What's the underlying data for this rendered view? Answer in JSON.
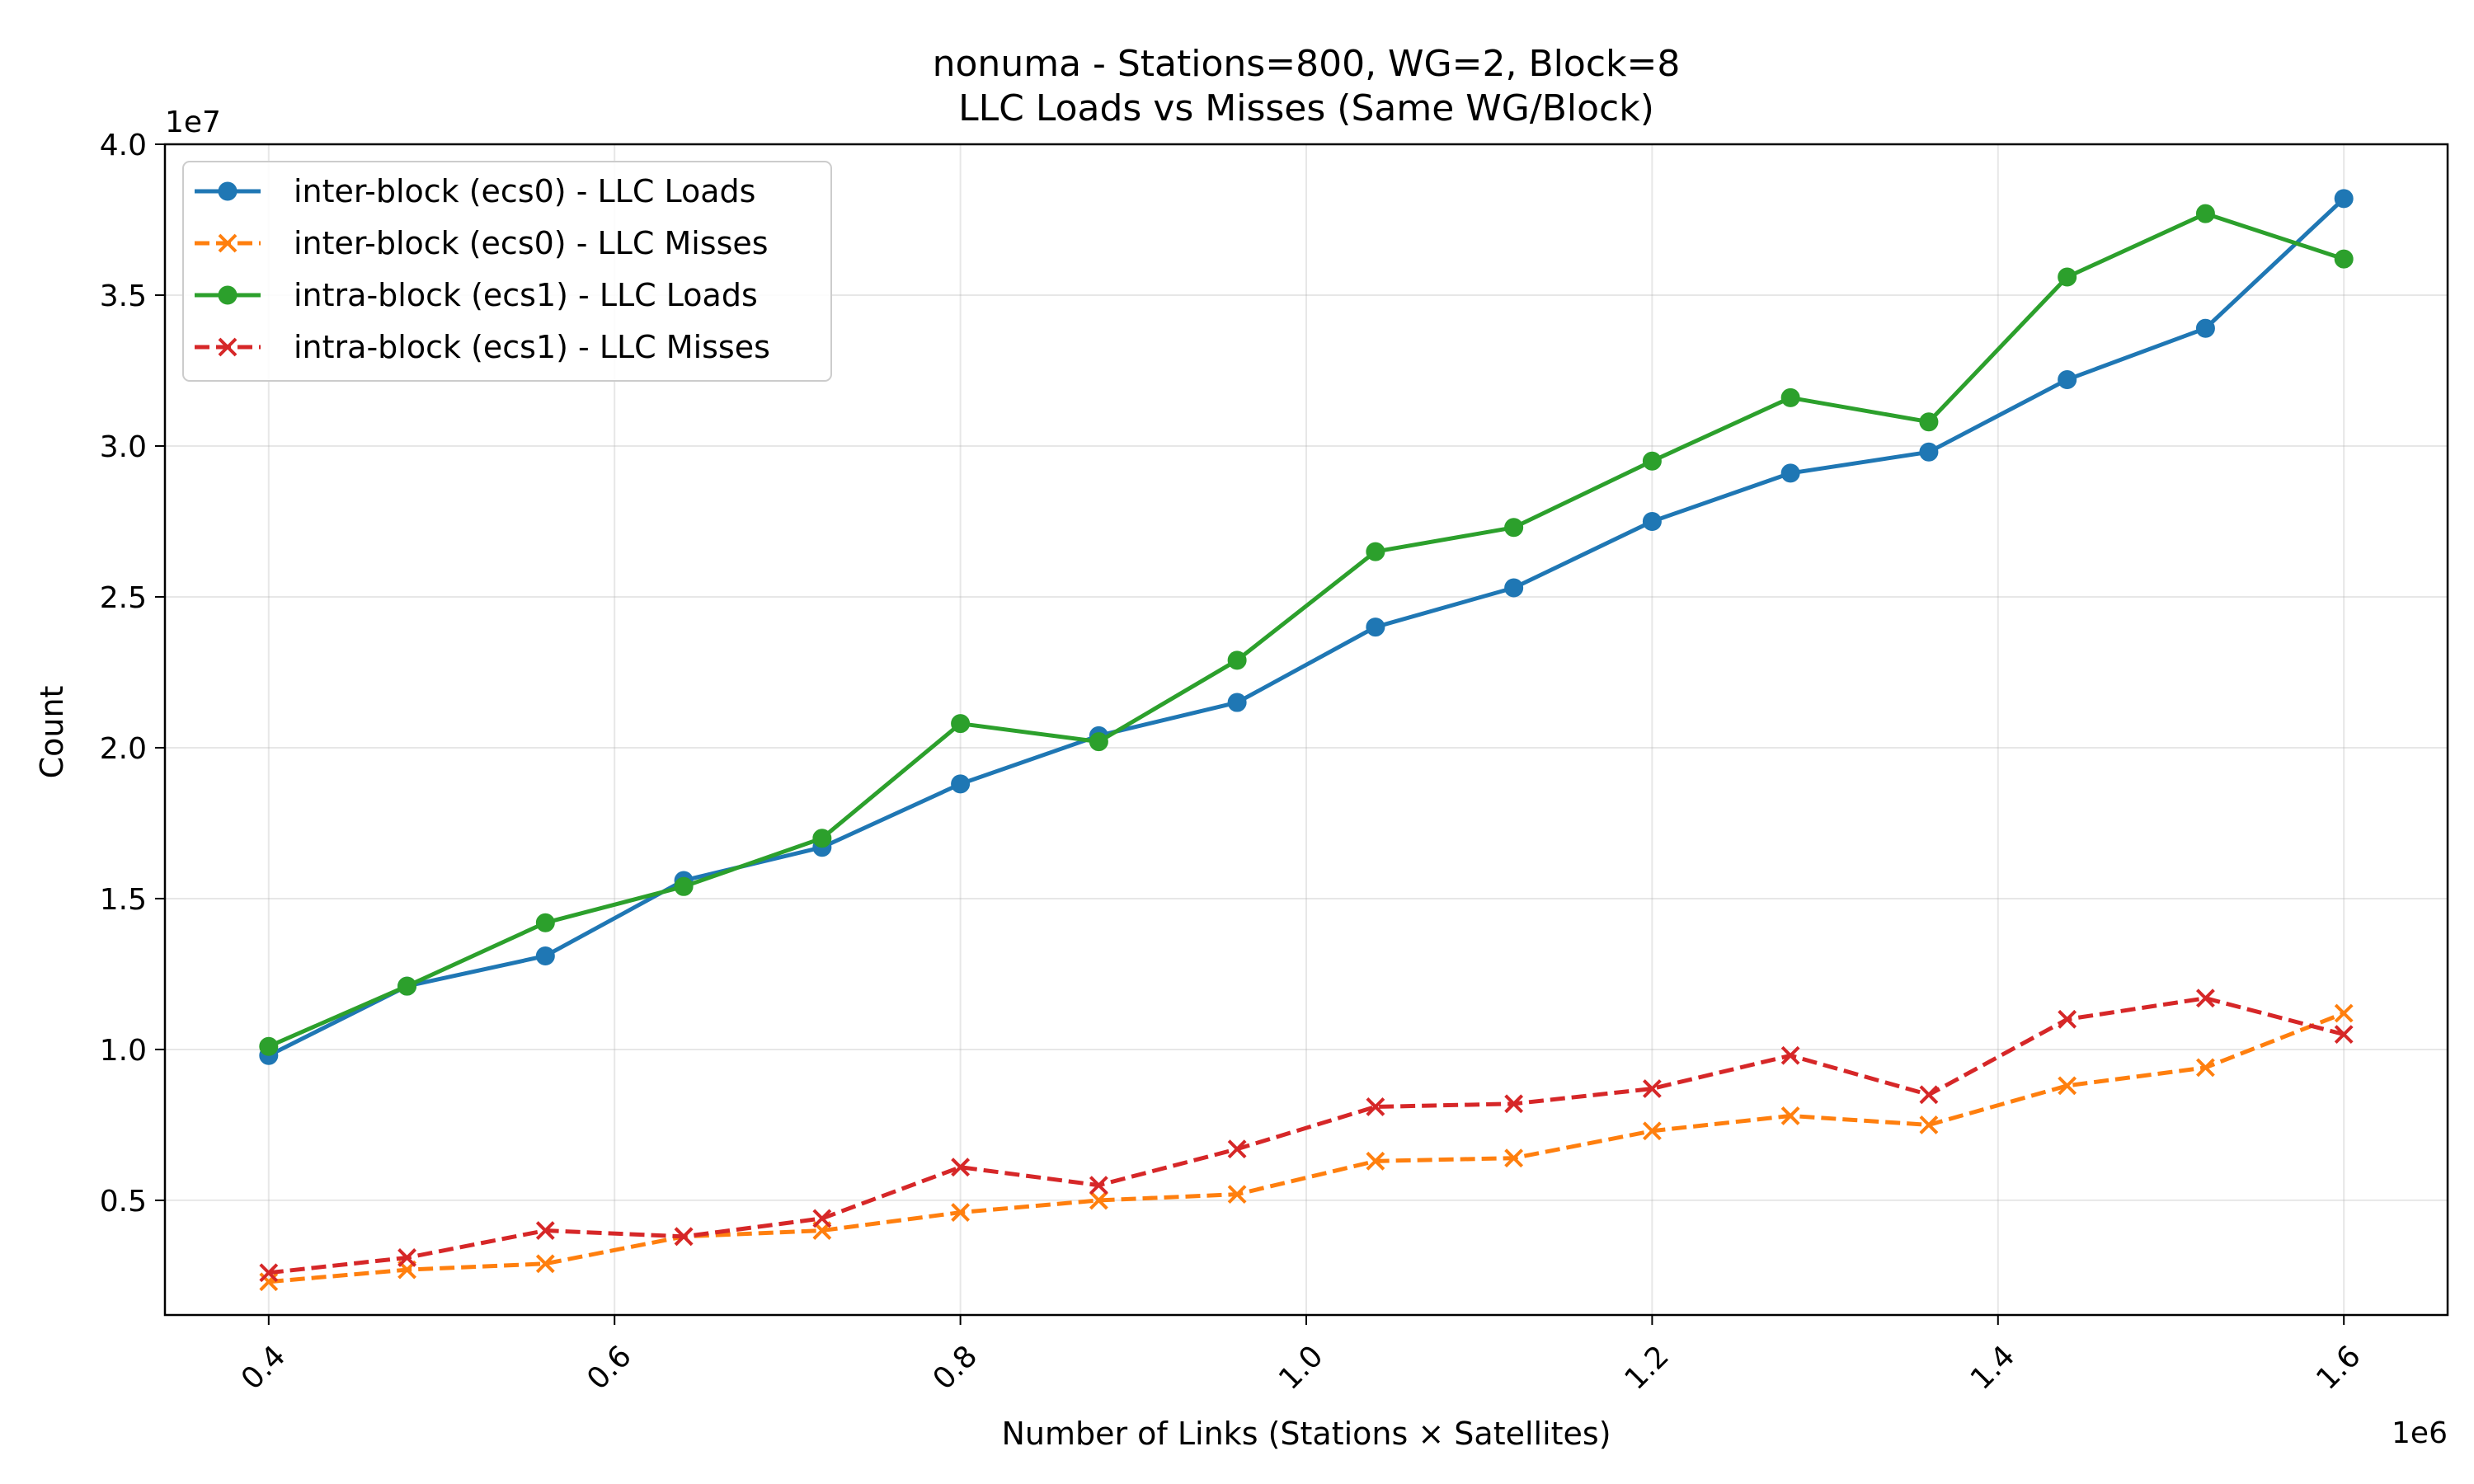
{
  "chart_data": {
    "type": "line",
    "title": "nonuma - Stations=800, WG=2, Block=8",
    "subtitle": "LLC Loads vs Misses (Same WG/Block)",
    "xlabel": "Number of Links (Stations × Satellites)",
    "ylabel": "Count",
    "x_offset_text": "1e6",
    "y_offset_text": "1e7",
    "xlim": [
      0.34,
      1.66
    ],
    "ylim": [
      0.12,
      4.0
    ],
    "x_scale_note": "1e6",
    "y_scale_note": "1e7",
    "xticks": [
      0.4,
      0.6,
      0.8,
      1.0,
      1.2,
      1.4,
      1.6
    ],
    "xtick_labels": [
      "0.4",
      "0.6",
      "0.8",
      "1.0",
      "1.2",
      "1.4",
      "1.6"
    ],
    "yticks": [
      0.5,
      1.0,
      1.5,
      2.0,
      2.5,
      3.0,
      3.5,
      4.0
    ],
    "ytick_labels": [
      "0.5",
      "1.0",
      "1.5",
      "2.0",
      "2.5",
      "3.0",
      "3.5",
      "4.0"
    ],
    "grid": true,
    "legend_position": "top-left",
    "x": [
      0.4,
      0.48,
      0.56,
      0.64,
      0.72,
      0.8,
      0.88,
      0.96,
      1.04,
      1.12,
      1.2,
      1.28,
      1.36,
      1.44,
      1.52,
      1.6
    ],
    "series": [
      {
        "name": "inter-block (ecs0) - LLC Loads",
        "color": "#1f77b4",
        "dash": "solid",
        "marker": "circle",
        "values": [
          0.98,
          1.21,
          1.31,
          1.56,
          1.67,
          1.88,
          2.04,
          2.15,
          2.4,
          2.53,
          2.75,
          2.91,
          2.98,
          3.22,
          3.39,
          3.82
        ]
      },
      {
        "name": "inter-block (ecs0) - LLC Misses",
        "color": "#ff7f0e",
        "dash": "dashed",
        "marker": "x",
        "values": [
          0.23,
          0.27,
          0.29,
          0.38,
          0.4,
          0.46,
          0.5,
          0.52,
          0.63,
          0.64,
          0.73,
          0.78,
          0.75,
          0.88,
          0.94,
          1.12
        ]
      },
      {
        "name": "intra-block (ecs1) - LLC Loads",
        "color": "#2ca02c",
        "dash": "solid",
        "marker": "circle",
        "values": [
          1.01,
          1.21,
          1.42,
          1.54,
          1.7,
          2.08,
          2.02,
          2.29,
          2.65,
          2.73,
          2.95,
          3.16,
          3.08,
          3.56,
          3.77,
          3.62
        ]
      },
      {
        "name": "intra-block (ecs1) - LLC Misses",
        "color": "#d62728",
        "dash": "dashed",
        "marker": "x",
        "values": [
          0.26,
          0.31,
          0.4,
          0.38,
          0.44,
          0.61,
          0.55,
          0.67,
          0.81,
          0.82,
          0.87,
          0.98,
          0.85,
          1.1,
          1.17,
          1.05
        ]
      }
    ]
  }
}
